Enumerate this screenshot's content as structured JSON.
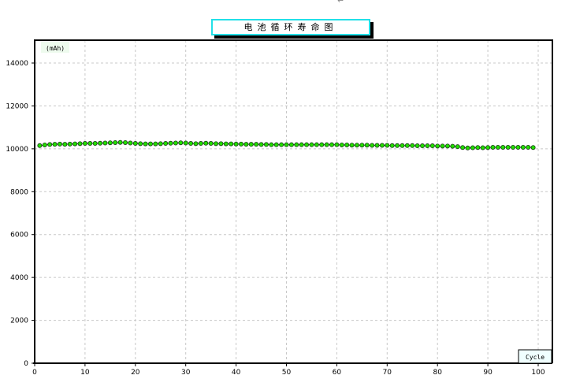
{
  "return_mark": "↵",
  "chart_data": {
    "type": "line",
    "title": "电池循环寿命图",
    "xlabel": "Cycle",
    "ylabel": "(mAh)",
    "xlim": [
      0,
      100
    ],
    "ylim": [
      0,
      15000
    ],
    "xticks": [
      0,
      10,
      20,
      30,
      40,
      50,
      60,
      70,
      80,
      90,
      100
    ],
    "yticks": [
      0,
      2000,
      4000,
      6000,
      8000,
      10000,
      12000,
      14000
    ],
    "grid": true,
    "colors": {
      "marker": "#22dd00",
      "marker_edge": "#1a3a1a",
      "title_border": "#22e0e8"
    },
    "x": [
      1,
      2,
      3,
      4,
      5,
      6,
      7,
      8,
      9,
      10,
      11,
      12,
      13,
      14,
      15,
      16,
      17,
      18,
      19,
      20,
      21,
      22,
      23,
      24,
      25,
      26,
      27,
      28,
      29,
      30,
      31,
      32,
      33,
      34,
      35,
      36,
      37,
      38,
      39,
      40,
      41,
      42,
      43,
      44,
      45,
      46,
      47,
      48,
      49,
      50,
      51,
      52,
      53,
      54,
      55,
      56,
      57,
      58,
      59,
      60,
      61,
      62,
      63,
      64,
      65,
      66,
      67,
      68,
      69,
      70,
      71,
      72,
      73,
      74,
      75,
      76,
      77,
      78,
      79,
      80,
      81,
      82,
      83,
      84,
      85,
      86,
      87,
      88,
      89,
      90,
      91,
      92,
      93,
      94,
      95,
      96,
      97,
      98,
      99
    ],
    "y": [
      10150,
      10180,
      10200,
      10210,
      10220,
      10210,
      10220,
      10230,
      10240,
      10250,
      10250,
      10250,
      10260,
      10270,
      10280,
      10290,
      10300,
      10290,
      10270,
      10250,
      10240,
      10230,
      10230,
      10230,
      10240,
      10250,
      10260,
      10270,
      10280,
      10270,
      10250,
      10240,
      10250,
      10260,
      10250,
      10240,
      10240,
      10230,
      10230,
      10220,
      10220,
      10210,
      10210,
      10210,
      10200,
      10200,
      10190,
      10190,
      10190,
      10190,
      10190,
      10190,
      10190,
      10190,
      10190,
      10190,
      10190,
      10190,
      10190,
      10190,
      10180,
      10180,
      10170,
      10170,
      10170,
      10170,
      10160,
      10160,
      10160,
      10160,
      10150,
      10150,
      10150,
      10150,
      10150,
      10140,
      10140,
      10140,
      10140,
      10130,
      10130,
      10130,
      10120,
      10100,
      10060,
      10040,
      10050,
      10060,
      10050,
      10060,
      10070,
      10070,
      10070,
      10070,
      10070,
      10070,
      10070,
      10070,
      10060
    ]
  }
}
